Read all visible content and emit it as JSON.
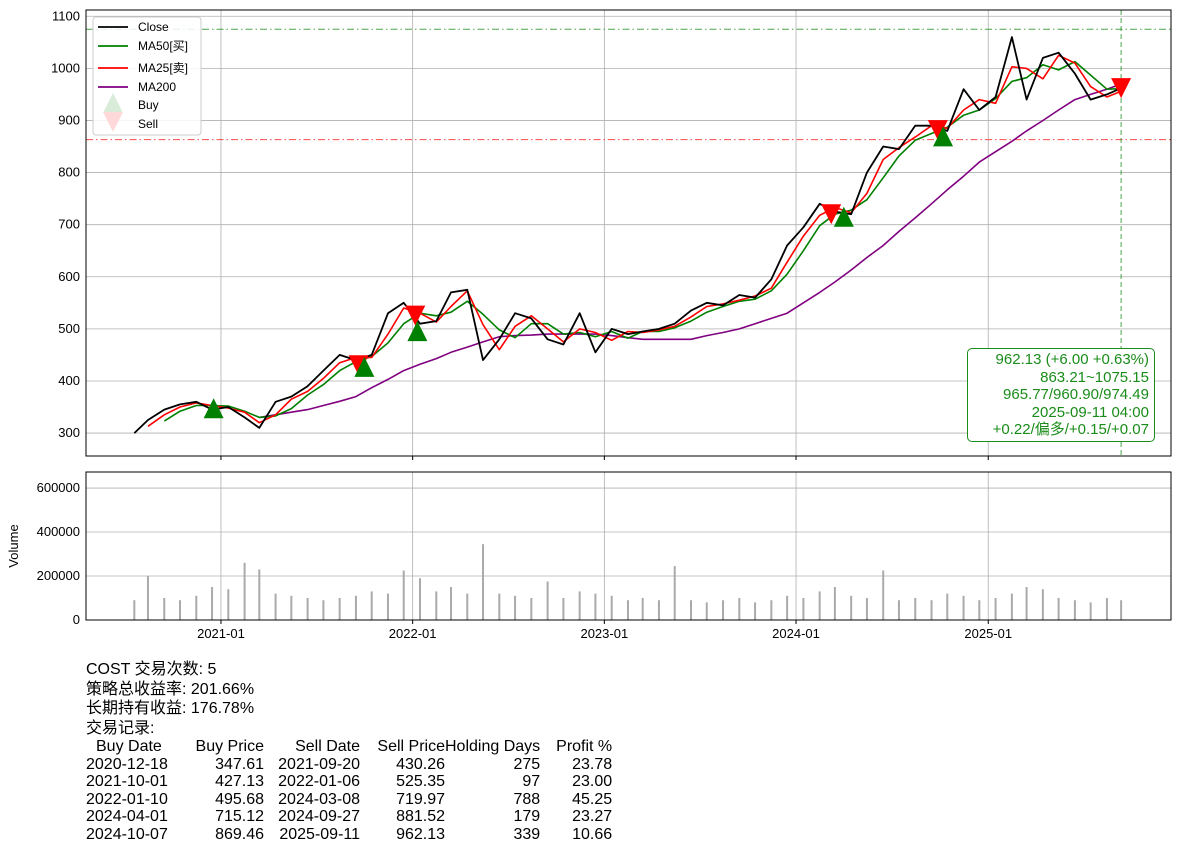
{
  "chart_data": [
    {
      "type": "line",
      "ticker": "COST",
      "xlim": [
        "2020-04-19",
        "2025-12-15"
      ],
      "ylim": [
        256,
        1112
      ],
      "yticks": [
        300,
        400,
        500,
        600,
        700,
        800,
        900,
        1000,
        1100
      ],
      "xticks": [
        "2021-01",
        "2022-01",
        "2023-01",
        "2024-01",
        "2025-01"
      ],
      "grid": true,
      "legend_placement": "top-left",
      "legend": [
        "Close",
        "MA50[买]",
        "MA25[卖]",
        "MA200",
        "Buy",
        "Sell"
      ],
      "colors": {
        "close": "#000000",
        "ma50": "#008000",
        "ma25": "#ff0000",
        "ma200": "#800080",
        "buy": "#008000",
        "sell": "#ff0000"
      },
      "dates": [
        "2020-07-20",
        "2020-08-15",
        "2020-09-15",
        "2020-10-15",
        "2020-11-15",
        "2020-12-15",
        "2021-01-15",
        "2021-02-15",
        "2021-03-15",
        "2021-04-15",
        "2021-05-15",
        "2021-06-15",
        "2021-07-15",
        "2021-08-15",
        "2021-09-15",
        "2021-10-15",
        "2021-11-15",
        "2021-12-15",
        "2022-01-15",
        "2022-02-15",
        "2022-03-15",
        "2022-04-15",
        "2022-05-15",
        "2022-06-15",
        "2022-07-15",
        "2022-08-15",
        "2022-09-15",
        "2022-10-15",
        "2022-11-15",
        "2022-12-15",
        "2023-01-15",
        "2023-02-15",
        "2023-03-15",
        "2023-04-15",
        "2023-05-15",
        "2023-06-15",
        "2023-07-15",
        "2023-08-15",
        "2023-09-15",
        "2023-10-15",
        "2023-11-15",
        "2023-12-15",
        "2024-01-15",
        "2024-02-15",
        "2024-03-15",
        "2024-04-15",
        "2024-05-15",
        "2024-06-15",
        "2024-07-15",
        "2024-08-15",
        "2024-09-15",
        "2024-10-15",
        "2024-11-15",
        "2024-12-15",
        "2025-01-15",
        "2025-02-15",
        "2025-03-15",
        "2025-04-15",
        "2025-05-15",
        "2025-06-15",
        "2025-07-15",
        "2025-08-15",
        "2025-09-11"
      ],
      "series": [
        {
          "name": "Close",
          "values": [
            300,
            325,
            345,
            355,
            360,
            345,
            350,
            330,
            310,
            360,
            370,
            390,
            420,
            450,
            440,
            450,
            530,
            550,
            510,
            515,
            570,
            575,
            440,
            480,
            530,
            520,
            480,
            470,
            530,
            455,
            500,
            490,
            495,
            500,
            510,
            535,
            550,
            545,
            565,
            560,
            595,
            660,
            695,
            740,
            725,
            720,
            800,
            850,
            845,
            890,
            890,
            880,
            960,
            920,
            945,
            1060,
            940,
            1020,
            1030,
            990,
            940,
            950,
            962
          ]
        },
        {
          "name": "MA50[买]",
          "values": [
            null,
            null,
            323,
            342,
            353,
            353,
            352,
            342,
            330,
            333,
            347,
            373,
            393,
            420,
            437,
            447,
            473,
            510,
            530,
            525,
            532,
            553,
            528,
            498,
            483,
            510,
            510,
            490,
            493,
            485,
            495,
            482,
            495,
            495,
            502,
            515,
            532,
            543,
            553,
            557,
            573,
            605,
            650,
            698,
            720,
            728,
            748,
            790,
            832,
            862,
            875,
            887,
            910,
            920,
            942,
            975,
            982,
            1007,
            997,
            1013,
            987,
            960,
            961
          ]
        },
        {
          "name": "MA25[卖]",
          "values": [
            null,
            313,
            335,
            350,
            358,
            353,
            348,
            340,
            320,
            335,
            365,
            380,
            405,
            435,
            445,
            445,
            490,
            540,
            530,
            513,
            543,
            573,
            508,
            460,
            505,
            525,
            500,
            475,
            500,
            493,
            478,
            495,
            493,
            498,
            505,
            523,
            543,
            548,
            555,
            563,
            578,
            628,
            678,
            718,
            733,
            723,
            760,
            825,
            848,
            868,
            890,
            885,
            920,
            940,
            933,
            1003,
            1000,
            980,
            1025,
            1010,
            965,
            945,
            956
          ]
        },
        {
          "name": "MA200",
          "values": [
            null,
            null,
            null,
            null,
            null,
            null,
            null,
            null,
            330,
            335,
            340,
            345,
            353,
            361,
            370,
            387,
            403,
            420,
            432,
            443,
            455,
            465,
            475,
            485,
            487,
            488,
            490,
            490,
            490,
            490,
            487,
            483,
            480,
            480,
            480,
            480,
            487,
            493,
            500,
            510,
            520,
            530,
            550,
            570,
            590,
            613,
            637,
            660,
            687,
            713,
            740,
            767,
            793,
            820,
            840,
            860,
            880,
            900,
            920,
            940,
            950,
            960,
            970
          ]
        }
      ],
      "hlines": [
        {
          "value": 1075.15,
          "color": "#008000",
          "style": "dash-dot"
        },
        {
          "value": 863.21,
          "color": "#ff0000",
          "style": "dash-dot"
        }
      ],
      "vline": {
        "date": "2025-09-11",
        "color": "#008000",
        "style": "dashed"
      },
      "annotation": [
        "962.13 (+6.00 +0.63%)",
        "863.21~1075.15",
        "965.77/960.90/974.49",
        "2025-09-11 04:00",
        "+0.22/偏多/+0.15/+0.07"
      ]
    },
    {
      "type": "bar",
      "ylabel": "Volume",
      "ylim": [
        0,
        673000
      ],
      "yticks": [
        0,
        200000,
        400000,
        600000
      ],
      "color": "#aaaaaa",
      "dates": [
        "2020-07-20",
        "2020-08-15",
        "2020-09-15",
        "2020-10-15",
        "2020-11-15",
        "2020-12-15",
        "2021-01-15",
        "2021-02-15",
        "2021-03-15",
        "2021-04-15",
        "2021-05-15",
        "2021-06-15",
        "2021-07-15",
        "2021-08-15",
        "2021-09-15",
        "2021-10-15",
        "2021-11-15",
        "2021-12-15",
        "2022-01-15",
        "2022-02-15",
        "2022-03-15",
        "2022-04-15",
        "2022-05-15",
        "2022-06-15",
        "2022-07-15",
        "2022-08-15",
        "2022-09-15",
        "2022-10-15",
        "2022-11-15",
        "2022-12-15",
        "2023-01-15",
        "2023-02-15",
        "2023-03-15",
        "2023-04-15",
        "2023-05-15",
        "2023-06-15",
        "2023-07-15",
        "2023-08-15",
        "2023-09-15",
        "2023-10-15",
        "2023-11-15",
        "2023-12-15",
        "2024-01-15",
        "2024-02-15",
        "2024-03-15",
        "2024-04-15",
        "2024-05-15",
        "2024-06-15",
        "2024-07-15",
        "2024-08-15",
        "2024-09-15",
        "2024-10-15",
        "2024-11-15",
        "2024-12-15",
        "2025-01-15",
        "2025-02-15",
        "2025-03-15",
        "2025-04-15",
        "2025-05-15",
        "2025-06-15",
        "2025-07-15",
        "2025-08-15",
        "2025-09-11"
      ],
      "values": [
        90000,
        200000,
        100000,
        90000,
        110000,
        150000,
        140000,
        260000,
        230000,
        120000,
        110000,
        100000,
        90000,
        100000,
        110000,
        130000,
        120000,
        225000,
        190000,
        130000,
        150000,
        120000,
        345000,
        120000,
        110000,
        100000,
        175000,
        100000,
        130000,
        120000,
        110000,
        90000,
        100000,
        90000,
        245000,
        90000,
        80000,
        90000,
        100000,
        80000,
        90000,
        110000,
        100000,
        130000,
        150000,
        110000,
        100000,
        225000,
        90000,
        100000,
        90000,
        120000,
        110000,
        90000,
        100000,
        120000,
        150000,
        140000,
        100000,
        90000,
        80000,
        100000,
        90000
      ]
    }
  ],
  "trades": [
    {
      "buy_date": "2020-12-18",
      "buy_price": 347.61,
      "sell_date": "2021-09-20",
      "sell_price": 430.26
    },
    {
      "buy_date": "2021-10-01",
      "buy_price": 427.13,
      "sell_date": "2022-01-06",
      "sell_price": 525.35
    },
    {
      "buy_date": "2022-01-10",
      "buy_price": 495.68,
      "sell_date": "2024-03-08",
      "sell_price": 719.97
    },
    {
      "buy_date": "2024-04-01",
      "buy_price": 715.12,
      "sell_date": "2024-09-27",
      "sell_price": 881.52
    },
    {
      "buy_date": "2024-10-07",
      "buy_price": 869.46,
      "sell_date": "2025-09-11",
      "sell_price": 962.13
    }
  ],
  "summary": {
    "line1": "COST 交易次数: 5",
    "line2": "策略总收益率: 201.66%",
    "line3": "长期持有收益: 176.78%",
    "line4": "交易记录:",
    "headers": [
      "Buy Date",
      "Buy Price",
      "Sell Date",
      "Sell Price",
      "Holding Days",
      "Profit %"
    ],
    "rows": [
      [
        "2020-12-18",
        "347.61",
        "2021-09-20",
        "430.26",
        "275",
        "23.78"
      ],
      [
        "2021-10-01",
        "427.13",
        "2022-01-06",
        "525.35",
        "97",
        "23.00"
      ],
      [
        "2022-01-10",
        "495.68",
        "2024-03-08",
        "719.97",
        "788",
        "45.25"
      ],
      [
        "2024-04-01",
        "715.12",
        "2024-09-27",
        "881.52",
        "179",
        "23.27"
      ],
      [
        "2024-10-07",
        "869.46",
        "2025-09-11",
        "962.13",
        "339",
        "10.66"
      ]
    ]
  }
}
